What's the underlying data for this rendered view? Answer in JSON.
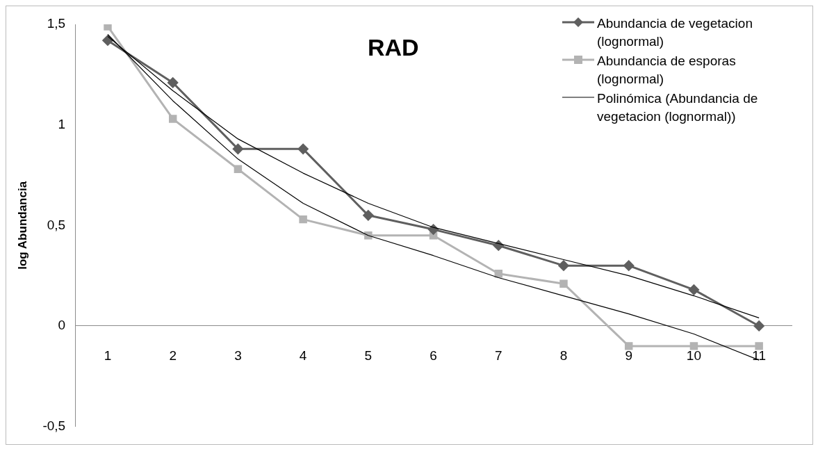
{
  "chart_data": {
    "type": "line",
    "title": "RAD",
    "ylabel": "log Abundancia",
    "categories": [
      "1",
      "2",
      "3",
      "4",
      "5",
      "6",
      "7",
      "8",
      "9",
      "10",
      "11"
    ],
    "series": [
      {
        "name": "Abundancia de vegetacion (lognormal)",
        "color": "#5f5f5f",
        "marker": "diamond",
        "values": [
          1.42,
          1.21,
          0.88,
          0.88,
          0.55,
          0.48,
          0.4,
          0.3,
          0.3,
          0.18,
          0.0
        ]
      },
      {
        "name": "Abundancia de esporas (lognormal)",
        "color": "#b3b3b3",
        "marker": "square",
        "values": [
          1.49,
          1.03,
          0.78,
          0.53,
          0.45,
          0.45,
          0.26,
          0.21,
          -0.1,
          -0.1,
          -0.1
        ]
      },
      {
        "name": "Polinómica (Abundancia de vegetacion (lognormal))",
        "color": "#000000",
        "marker": "none",
        "values": [
          1.44,
          1.17,
          0.93,
          0.76,
          0.61,
          0.49,
          0.41,
          0.33,
          0.25,
          0.15,
          0.04
        ]
      },
      {
        "color": "#000000",
        "marker": "none",
        "values": [
          1.45,
          1.12,
          0.83,
          0.61,
          0.45,
          0.35,
          0.24,
          0.15,
          0.06,
          -0.04,
          -0.17
        ]
      }
    ],
    "ylim": [
      -0.5,
      1.5
    ],
    "yticks": [
      {
        "value": -0.5,
        "label": "-0,5"
      },
      {
        "value": 0,
        "label": "0"
      },
      {
        "value": 0.5,
        "label": "0,5"
      },
      {
        "value": 1,
        "label": "1"
      },
      {
        "value": 1.5,
        "label": "1,5"
      }
    ],
    "grid": false,
    "legend": "top right",
    "line_style": "solid"
  }
}
